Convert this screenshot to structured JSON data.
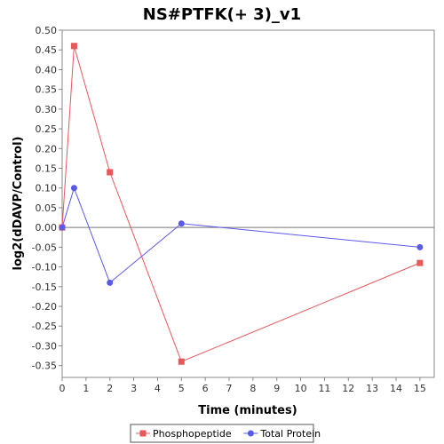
{
  "chart_data": {
    "type": "line",
    "title": "NS#PTFK(+ 3)_v1",
    "xlabel": "Time (minutes)",
    "ylabel": "log2(dDAVP/Control)",
    "xlim": [
      0,
      15.6
    ],
    "ylim": [
      -0.38,
      0.5
    ],
    "xticks": [
      0,
      1,
      2,
      3,
      4,
      5,
      6,
      7,
      8,
      9,
      10,
      11,
      12,
      13,
      14,
      15
    ],
    "yticks": [
      0.5,
      0.45,
      0.4,
      0.35,
      0.3,
      0.25,
      0.2,
      0.15,
      0.1,
      0.05,
      0.0,
      -0.05,
      -0.1,
      -0.15,
      -0.2,
      -0.25,
      -0.3,
      -0.35
    ],
    "ytick_labels": [
      "0.50",
      "0.45",
      "0.40",
      "0.35",
      "0.30",
      "0.25",
      "0.20",
      "0.15",
      "0.10",
      "0.05",
      "0.00",
      "-0.05",
      "-0.10",
      "-0.15",
      "-0.20",
      "-0.25",
      "-0.30",
      "-0.35"
    ],
    "zero_line": true,
    "grid": false,
    "legend_position": "bottom",
    "series": [
      {
        "name": "Phosphopeptide",
        "color": "#e8575a",
        "marker": "square",
        "x": [
          0,
          0.5,
          2,
          5,
          15
        ],
        "y": [
          0.0,
          0.46,
          0.14,
          -0.34,
          -0.09
        ]
      },
      {
        "name": "Total Protein",
        "color": "#5a5ae8",
        "marker": "circle",
        "x": [
          0,
          0.5,
          2,
          5,
          15
        ],
        "y": [
          0.0,
          0.1,
          -0.14,
          0.01,
          -0.05
        ]
      }
    ]
  }
}
